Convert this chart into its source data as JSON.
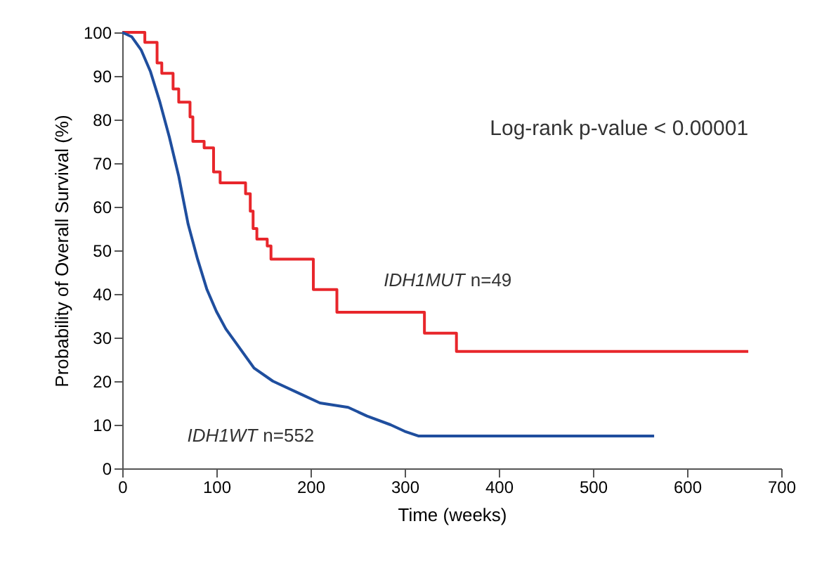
{
  "chart_data": {
    "type": "step",
    "xlabel": "Time (weeks)",
    "ylabel": "Probability of Overall Survival (%)",
    "xlim": [
      0,
      700
    ],
    "xticks": [
      0,
      100,
      200,
      300,
      400,
      500,
      600,
      700
    ],
    "ylim": [
      0,
      100
    ],
    "yticks": [
      0,
      10,
      20,
      30,
      40,
      50,
      60,
      70,
      80,
      90,
      100
    ],
    "grid": false,
    "series": [
      {
        "color": "#e8262b",
        "x": [
          0,
          24,
          37,
          42,
          54,
          60,
          72,
          75,
          87,
          97,
          104,
          131,
          136,
          139,
          143,
          154,
          158,
          203,
          228,
          321,
          355,
          665
        ],
        "values": [
          100,
          97.7,
          93,
          90.6,
          87,
          84,
          80.6,
          75,
          73.5,
          68,
          65.5,
          63,
          59,
          55,
          52.6,
          51,
          48,
          41,
          35.8,
          31,
          26.8,
          26.8
        ]
      },
      {
        "type": "line",
        "color": "#1f4e9e",
        "x": [
          0,
          10,
          20,
          30,
          40,
          50,
          60,
          70,
          80,
          90,
          100,
          110,
          120,
          140,
          160,
          190,
          210,
          240,
          260,
          285,
          300,
          315,
          565
        ],
        "values": [
          100,
          99,
          96,
          91,
          84,
          76,
          67,
          56,
          48,
          41,
          36,
          32,
          29,
          23,
          20,
          17,
          15,
          14,
          12,
          10,
          8.5,
          7.4,
          7.4
        ]
      }
    ],
    "annotations": [
      "Log-rank p-value < 0.00001",
      "IDH1MUT n=49",
      "IDH1WT n=552"
    ]
  }
}
